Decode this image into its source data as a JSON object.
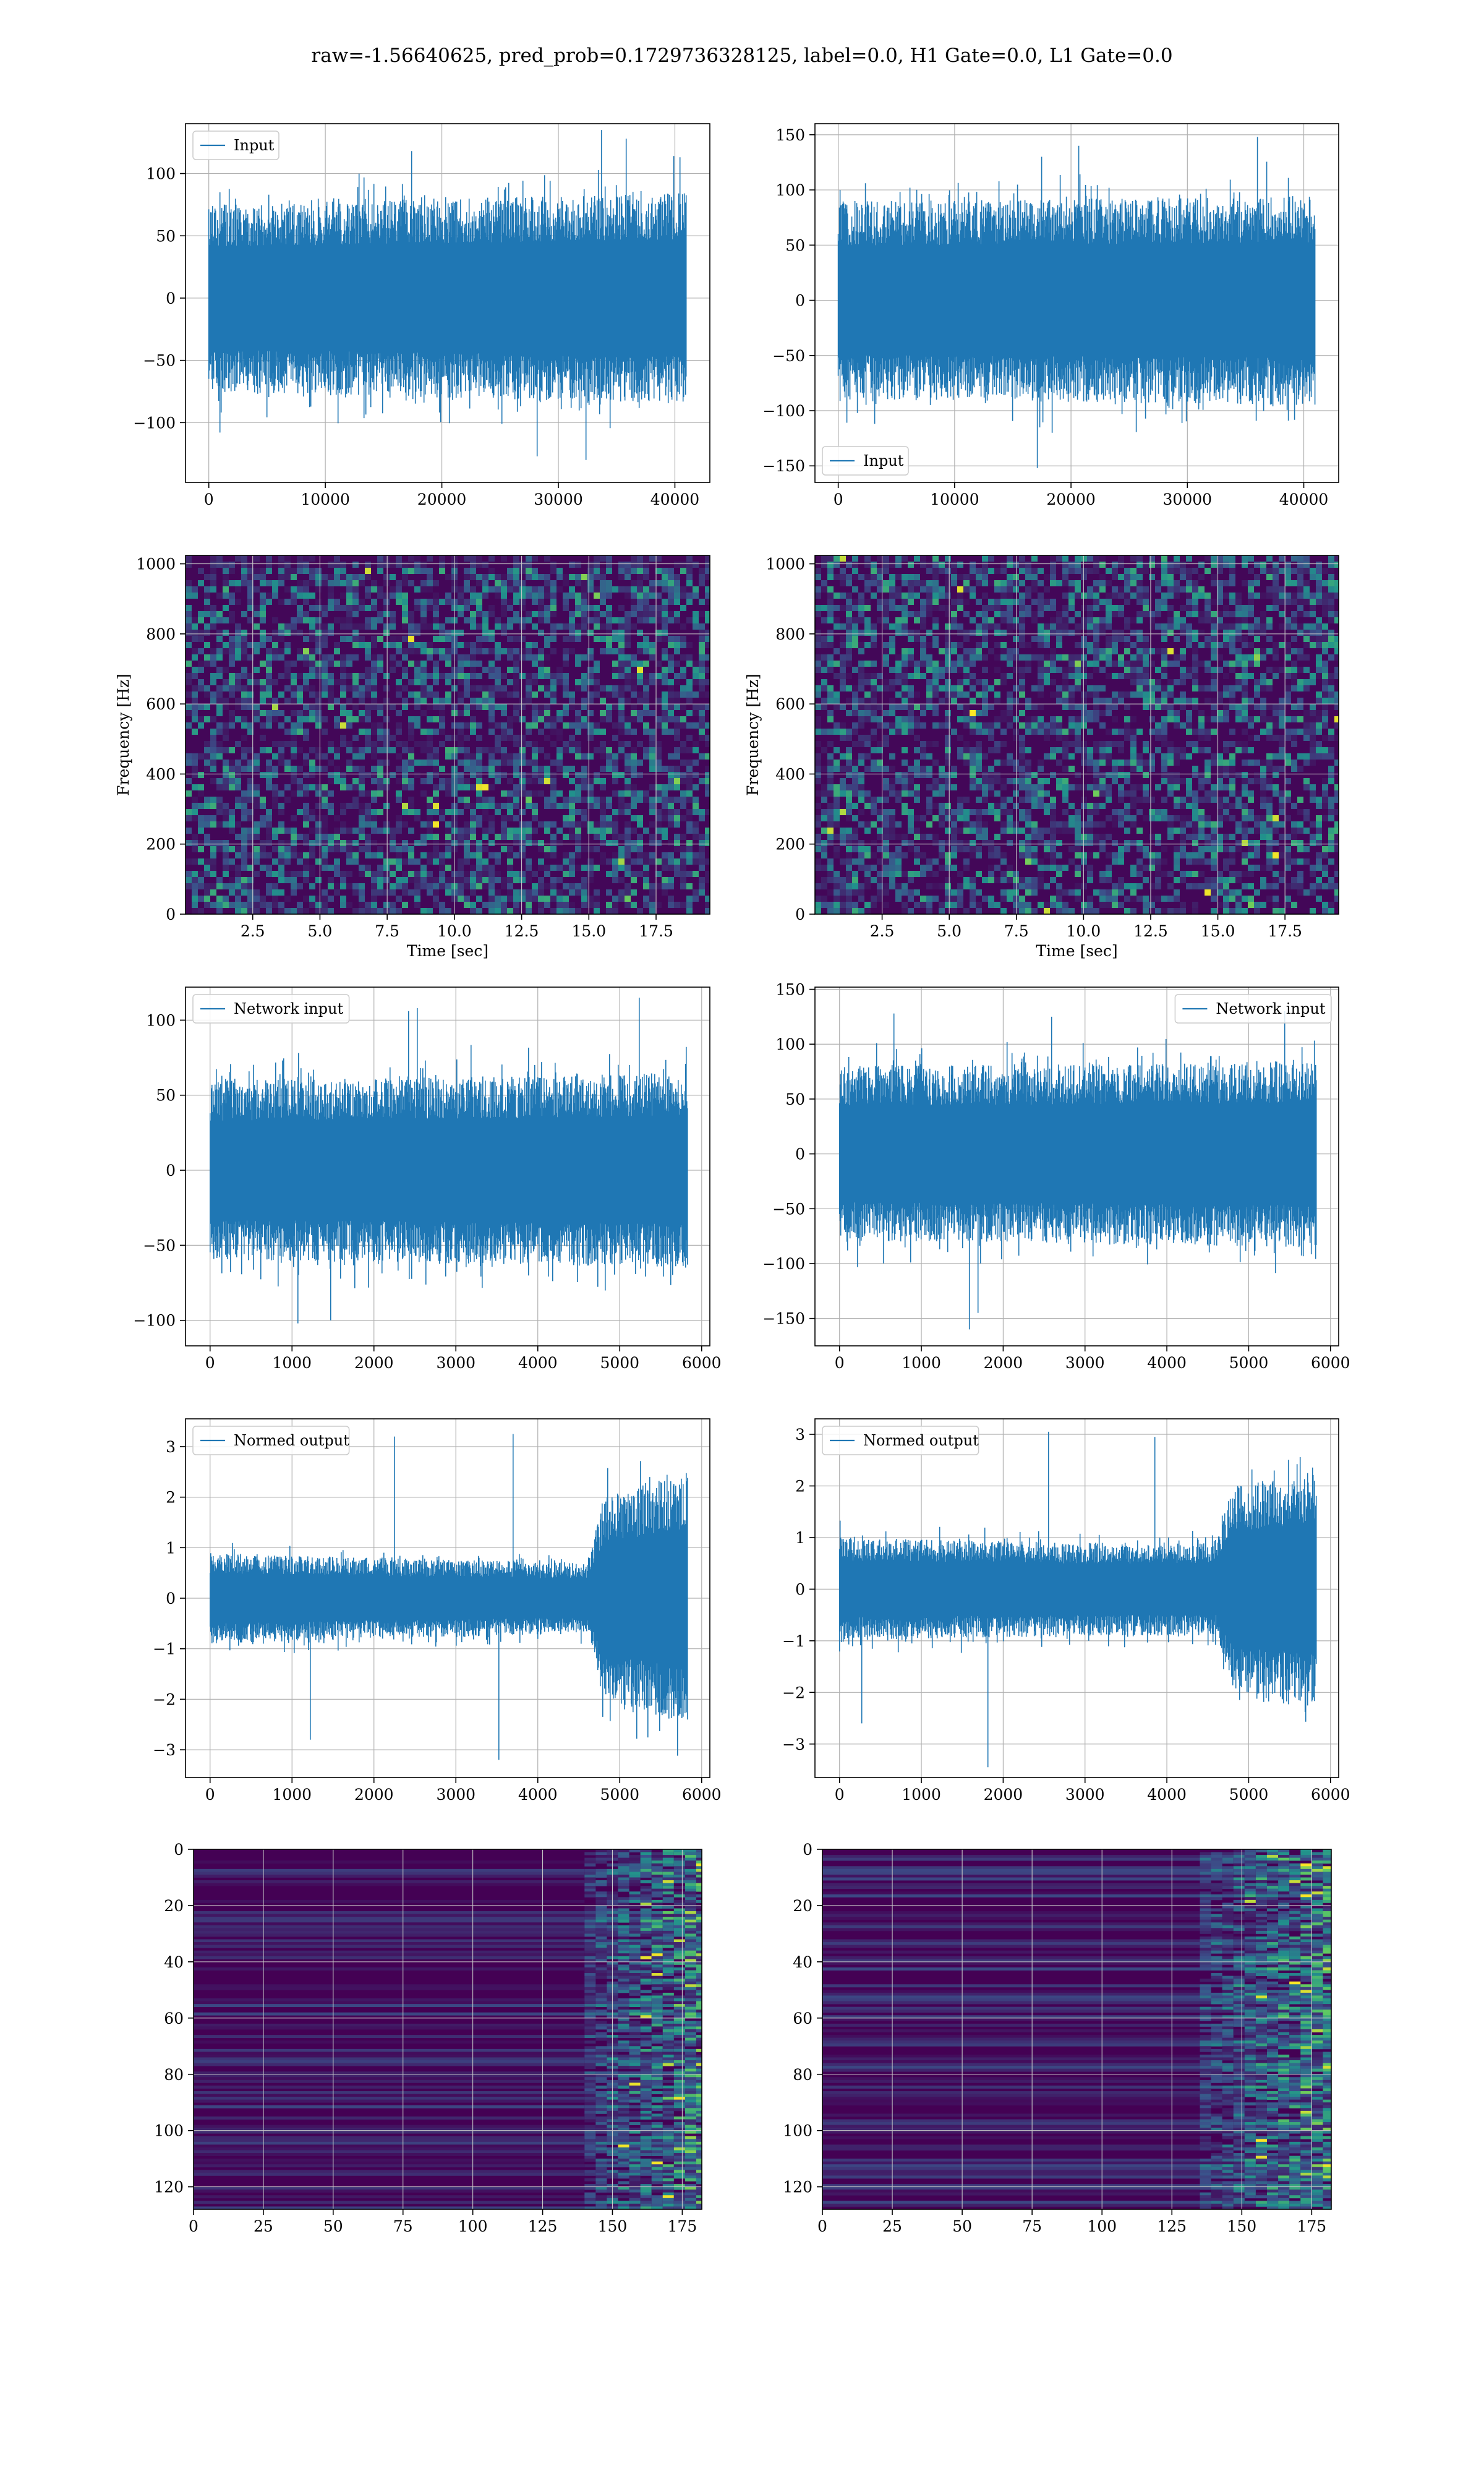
{
  "figure": {
    "suptitle": "raw=-1.56640625, pred_prob=0.1729736328125, label=0.0, H1 Gate=0.0, L1 Gate=0.0"
  },
  "colors": {
    "series": "#1f77b4",
    "grid": "#b0b0b0",
    "viridis_low": "#440154",
    "viridis_mid": "#21918c",
    "viridis_high": "#fde725"
  },
  "chart_data": [
    {
      "id": "h1-input",
      "type": "line",
      "style": "dense-noise",
      "title": "",
      "xlabel": "",
      "ylabel": "",
      "legend": {
        "label": "Input",
        "loc": "upper left"
      },
      "xlim": [
        -2000,
        43000
      ],
      "ylim": [
        -148,
        140
      ],
      "xticks": [
        0,
        10000,
        20000,
        30000,
        40000
      ],
      "yticks": [
        -100,
        -50,
        0,
        50,
        100
      ],
      "series": [
        {
          "name": "Input",
          "x_range": [
            0,
            40960
          ],
          "envelope_abs": [
            [
              0,
              75
            ],
            [
              20000,
              80
            ],
            [
              40960,
              85
            ]
          ],
          "spike_peaks": [
            -130,
            135,
            -127,
            128,
            -108,
            118
          ]
        }
      ]
    },
    {
      "id": "l1-input",
      "type": "line",
      "style": "dense-noise",
      "title": "",
      "xlabel": "",
      "ylabel": "",
      "legend": {
        "label": "Input",
        "loc": "lower left"
      },
      "xlim": [
        -2000,
        43000
      ],
      "ylim": [
        -165,
        160
      ],
      "xticks": [
        0,
        10000,
        20000,
        30000,
        40000
      ],
      "yticks": [
        -150,
        -100,
        -50,
        0,
        50,
        100,
        150
      ],
      "series": [
        {
          "name": "Input",
          "x_range": [
            0,
            40960
          ],
          "envelope_abs": [
            [
              0,
              90
            ],
            [
              20000,
              92
            ],
            [
              40960,
              95
            ]
          ],
          "spike_peaks": [
            148,
            -152,
            140,
            -120,
            130
          ]
        }
      ]
    },
    {
      "id": "h1-spectrogram",
      "type": "heatmap",
      "style": "spectrogram",
      "title": "",
      "xlabel": "Time [sec]",
      "ylabel": "Frequency [Hz]",
      "xlim": [
        0,
        19.5
      ],
      "ylim": [
        0,
        1024
      ],
      "xticks": [
        2.5,
        5.0,
        7.5,
        10.0,
        12.5,
        15.0,
        17.5
      ],
      "yticks": [
        0,
        200,
        400,
        600,
        800,
        1000
      ],
      "colormap": "viridis",
      "dark_bands_hz": [
        1000,
        490
      ]
    },
    {
      "id": "l1-spectrogram",
      "type": "heatmap",
      "style": "spectrogram",
      "title": "",
      "xlabel": "Time [sec]",
      "ylabel": "Frequency [Hz]",
      "xlim": [
        0,
        19.5
      ],
      "ylim": [
        0,
        1024
      ],
      "xticks": [
        2.5,
        5.0,
        7.5,
        10.0,
        12.5,
        15.0,
        17.5
      ],
      "yticks": [
        0,
        200,
        400,
        600,
        800,
        1000
      ],
      "colormap": "viridis",
      "dark_bands_hz": [
        500
      ]
    },
    {
      "id": "h1-network-input",
      "type": "line",
      "style": "dense-noise",
      "title": "",
      "xlabel": "",
      "ylabel": "",
      "legend": {
        "label": "Network input",
        "loc": "upper left"
      },
      "xlim": [
        -300,
        6100
      ],
      "ylim": [
        -117,
        122
      ],
      "xticks": [
        0,
        1000,
        2000,
        3000,
        4000,
        5000,
        6000
      ],
      "yticks": [
        -100,
        -50,
        0,
        50,
        100
      ],
      "series": [
        {
          "name": "Network input",
          "x_range": [
            0,
            5824
          ],
          "envelope_abs": [
            [
              0,
              60
            ],
            [
              3000,
              62
            ],
            [
              5824,
              65
            ]
          ],
          "spike_peaks": [
            -102,
            115,
            108,
            -100,
            106
          ]
        }
      ]
    },
    {
      "id": "l1-network-input",
      "type": "line",
      "style": "dense-noise",
      "title": "",
      "xlabel": "",
      "ylabel": "",
      "legend": {
        "label": "Network input",
        "loc": "upper right"
      },
      "xlim": [
        -300,
        6100
      ],
      "ylim": [
        -175,
        152
      ],
      "xticks": [
        0,
        1000,
        2000,
        3000,
        4000,
        5000,
        6000
      ],
      "yticks": [
        -150,
        -100,
        -50,
        0,
        50,
        100,
        150
      ],
      "series": [
        {
          "name": "Network input",
          "x_range": [
            0,
            5824
          ],
          "envelope_abs": [
            [
              0,
              80
            ],
            [
              3000,
              82
            ],
            [
              5824,
              85
            ]
          ],
          "spike_peaks": [
            -160,
            128,
            -145,
            125,
            130
          ]
        }
      ]
    },
    {
      "id": "h1-normed-output",
      "type": "line",
      "style": "dense-noise",
      "title": "",
      "xlabel": "",
      "ylabel": "",
      "legend": {
        "label": "Normed output",
        "loc": "upper left"
      },
      "xlim": [
        -300,
        6100
      ],
      "ylim": [
        -3.55,
        3.55
      ],
      "xticks": [
        0,
        1000,
        2000,
        3000,
        4000,
        5000,
        6000
      ],
      "yticks": [
        -3,
        -2,
        -1,
        0,
        1,
        2,
        3
      ],
      "series": [
        {
          "name": "Normed output",
          "x_range": [
            0,
            5824
          ],
          "envelope_abs": [
            [
              0,
              0.9
            ],
            [
              2000,
              0.8
            ],
            [
              4600,
              0.7
            ],
            [
              4800,
              2.0
            ],
            [
              5824,
              2.5
            ]
          ],
          "spike_peaks": [
            3.25,
            -3.2,
            3.2,
            -2.8
          ]
        }
      ]
    },
    {
      "id": "l1-normed-output",
      "type": "line",
      "style": "dense-noise",
      "title": "",
      "xlabel": "",
      "ylabel": "",
      "legend": {
        "label": "Normed output",
        "loc": "upper left"
      },
      "xlim": [
        -300,
        6100
      ],
      "ylim": [
        -3.65,
        3.3
      ],
      "xticks": [
        0,
        1000,
        2000,
        3000,
        4000,
        5000,
        6000
      ],
      "yticks": [
        -3,
        -2,
        -1,
        0,
        1,
        2,
        3
      ],
      "series": [
        {
          "name": "Normed output",
          "x_range": [
            0,
            5824
          ],
          "envelope_abs": [
            [
              0,
              1.0
            ],
            [
              3000,
              0.9
            ],
            [
              4600,
              0.9
            ],
            [
              4800,
              2.0
            ],
            [
              5824,
              2.3
            ]
          ],
          "spike_peaks": [
            3.05,
            -3.45,
            2.95,
            -2.6
          ]
        }
      ]
    },
    {
      "id": "h1-feature-map",
      "type": "heatmap",
      "style": "feature-map",
      "title": "",
      "xlabel": "",
      "ylabel": "",
      "xlim": [
        0,
        182
      ],
      "ylim": [
        128,
        0
      ],
      "xticks": [
        0,
        25,
        50,
        75,
        100,
        125,
        150,
        175
      ],
      "yticks": [
        0,
        20,
        40,
        60,
        80,
        100,
        120
      ],
      "colormap": "viridis",
      "active_from_x": 140
    },
    {
      "id": "l1-feature-map",
      "type": "heatmap",
      "style": "feature-map",
      "title": "",
      "xlabel": "",
      "ylabel": "",
      "xlim": [
        0,
        182
      ],
      "ylim": [
        128,
        0
      ],
      "xticks": [
        0,
        25,
        50,
        75,
        100,
        125,
        150,
        175
      ],
      "yticks": [
        0,
        20,
        40,
        60,
        80,
        100,
        120
      ],
      "colormap": "viridis",
      "active_from_x": 135
    }
  ]
}
